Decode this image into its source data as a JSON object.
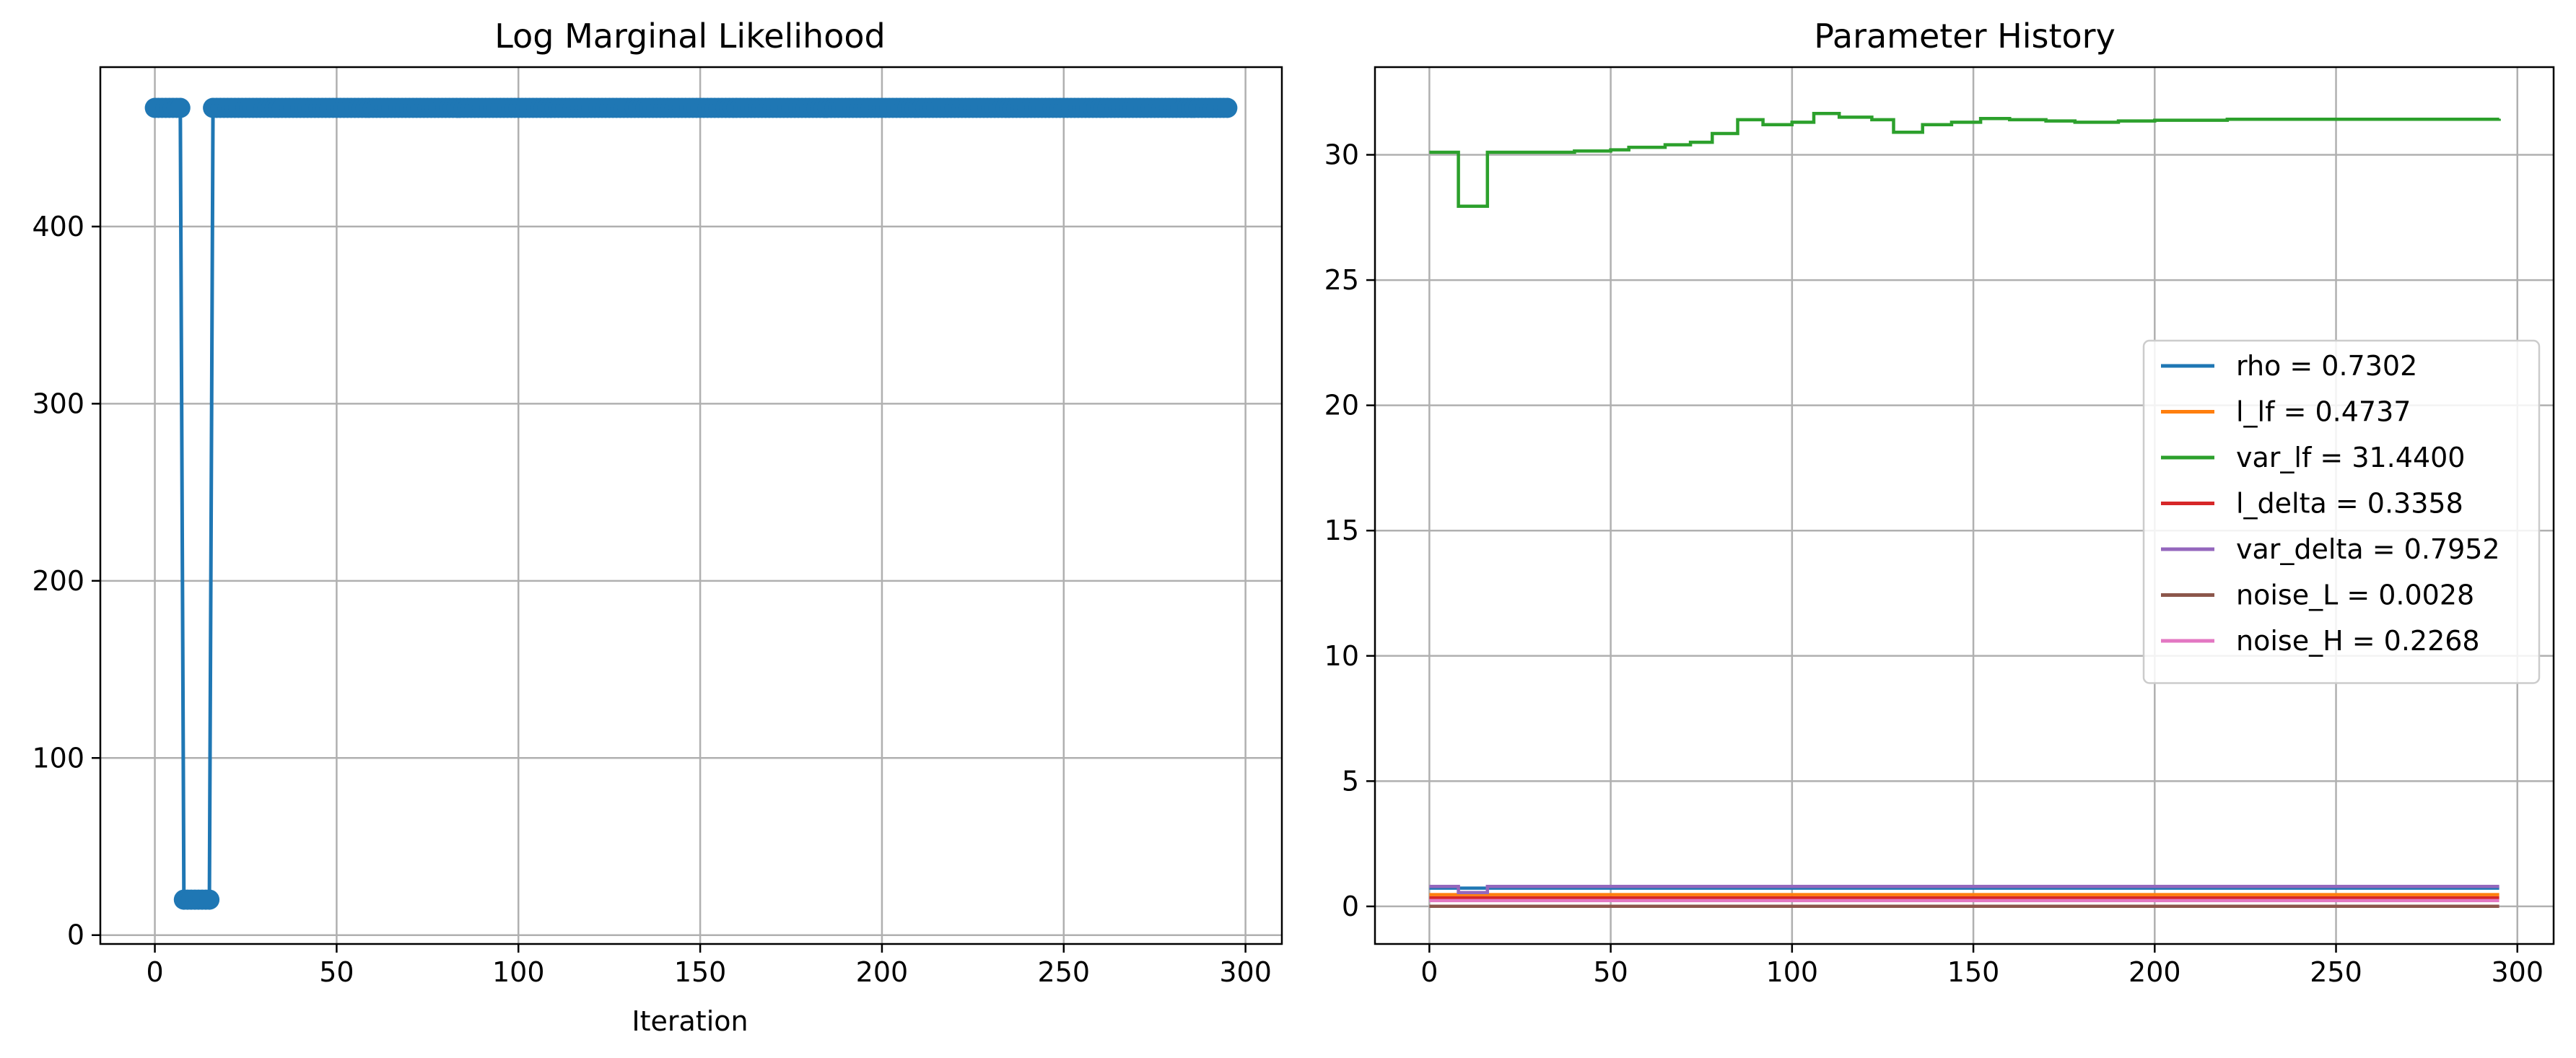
{
  "chart_data": [
    {
      "type": "line",
      "title": "Log Marginal Likelihood",
      "xlabel": "Iteration",
      "ylabel": "",
      "xlim": [
        -15,
        310
      ],
      "ylim": [
        -5,
        490
      ],
      "xticks": [
        0,
        50,
        100,
        150,
        200,
        250,
        300
      ],
      "yticks": [
        0,
        100,
        200,
        300,
        400
      ],
      "grid": true,
      "markers": true,
      "series": [
        {
          "color": "#1f77b4",
          "segments": [
            [
              0,
              467
            ],
            [
              7,
              467
            ],
            [
              8,
              20
            ],
            [
              15,
              20
            ],
            [
              16,
              467
            ],
            [
              295,
              467
            ]
          ]
        }
      ]
    },
    {
      "type": "line",
      "title": "Parameter History",
      "xlabel": "",
      "ylabel": "",
      "xlim": [
        -15,
        310
      ],
      "ylim": [
        -1.5,
        33.5
      ],
      "xticks": [
        0,
        50,
        100,
        150,
        200,
        250,
        300
      ],
      "yticks": [
        0,
        5,
        10,
        15,
        20,
        25,
        30
      ],
      "grid": true,
      "legend": "center-right",
      "series": [
        {
          "name": "rho = 0.7302",
          "color": "#1f77b4",
          "points": [
            [
              0,
              0.73
            ],
            [
              295,
              0.73
            ]
          ]
        },
        {
          "name": "l_lf = 0.4737",
          "color": "#ff7f0e",
          "points": [
            [
              0,
              0.47
            ],
            [
              295,
              0.47
            ]
          ]
        },
        {
          "name": "var_lf = 31.4400",
          "color": "#2ca02c",
          "points": [
            [
              0,
              30.1
            ],
            [
              7,
              30.1
            ],
            [
              8,
              27.95
            ],
            [
              15,
              27.95
            ],
            [
              16,
              30.1
            ],
            [
              40,
              30.15
            ],
            [
              50,
              30.2
            ],
            [
              55,
              30.3
            ],
            [
              65,
              30.4
            ],
            [
              72,
              30.5
            ],
            [
              78,
              30.85
            ],
            [
              85,
              31.4
            ],
            [
              92,
              31.2
            ],
            [
              100,
              31.3
            ],
            [
              106,
              31.65
            ],
            [
              113,
              31.5
            ],
            [
              122,
              31.4
            ],
            [
              128,
              30.9
            ],
            [
              136,
              31.2
            ],
            [
              144,
              31.3
            ],
            [
              152,
              31.45
            ],
            [
              160,
              31.4
            ],
            [
              170,
              31.35
            ],
            [
              178,
              31.3
            ],
            [
              190,
              31.35
            ],
            [
              200,
              31.38
            ],
            [
              220,
              31.42
            ],
            [
              295,
              31.44
            ]
          ]
        },
        {
          "name": "l_delta = 0.3358",
          "color": "#d62728",
          "points": [
            [
              0,
              0.34
            ],
            [
              295,
              0.34
            ]
          ]
        },
        {
          "name": "var_delta = 0.7952",
          "color": "#9467bd",
          "points": [
            [
              0,
              0.8
            ],
            [
              7,
              0.8
            ],
            [
              8,
              0.55
            ],
            [
              15,
              0.55
            ],
            [
              16,
              0.8
            ],
            [
              295,
              0.8
            ]
          ]
        },
        {
          "name": "noise_L = 0.0028",
          "color": "#8c564b",
          "points": [
            [
              0,
              0.003
            ],
            [
              295,
              0.003
            ]
          ]
        },
        {
          "name": "noise_H = 0.2268",
          "color": "#e377c2",
          "points": [
            [
              0,
              0.23
            ],
            [
              295,
              0.23
            ]
          ]
        }
      ]
    }
  ]
}
